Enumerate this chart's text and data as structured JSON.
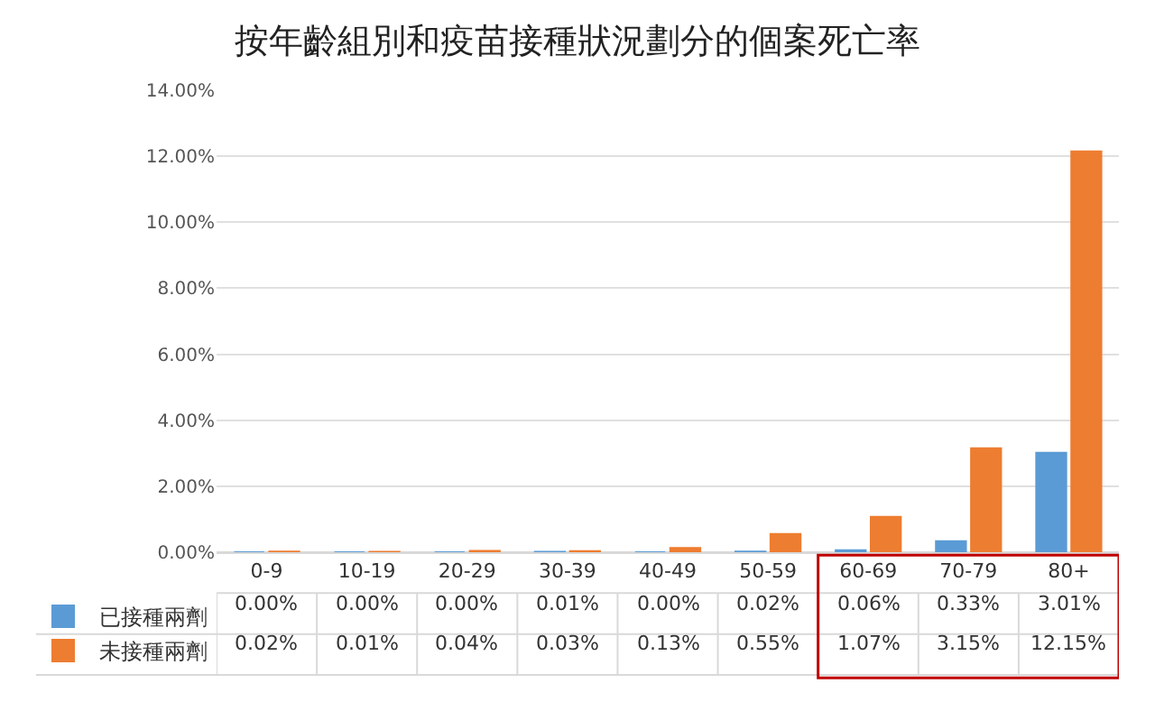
{
  "chart_data": {
    "type": "bar",
    "title": "按年齡組別和疫苗接種狀況劃分的個案死亡率",
    "categories": [
      "0-9",
      "10-19",
      "20-29",
      "30-39",
      "40-49",
      "50-59",
      "60-69",
      "70-79",
      "80+"
    ],
    "series": [
      {
        "name": "已接種兩劑",
        "color": "#5b9bd5",
        "values": [
          0.0,
          0.0,
          0.0,
          0.01,
          0.0,
          0.02,
          0.06,
          0.33,
          3.01
        ],
        "value_labels": [
          "0.00%",
          "0.00%",
          "0.00%",
          "0.01%",
          "0.00%",
          "0.02%",
          "0.06%",
          "0.33%",
          "3.01%"
        ]
      },
      {
        "name": "未接種兩劑",
        "color": "#ed7d31",
        "values": [
          0.02,
          0.01,
          0.04,
          0.03,
          0.13,
          0.55,
          1.07,
          3.15,
          12.15
        ],
        "value_labels": [
          "0.02%",
          "0.01%",
          "0.04%",
          "0.03%",
          "0.13%",
          "0.55%",
          "1.07%",
          "3.15%",
          "12.15%"
        ]
      }
    ],
    "ylim": [
      0,
      14
    ],
    "yticks": [
      {
        "value": 0,
        "label": "0.00%"
      },
      {
        "value": 2,
        "label": "2.00%"
      },
      {
        "value": 4,
        "label": "4.00%"
      },
      {
        "value": 6,
        "label": "6.00%"
      },
      {
        "value": 8,
        "label": "8.00%"
      },
      {
        "value": 10,
        "label": "10.00%"
      },
      {
        "value": 12,
        "label": "12.00%"
      },
      {
        "value": 14,
        "label": "14.00%"
      }
    ],
    "grid": "y",
    "legend": "bottom left"
  }
}
